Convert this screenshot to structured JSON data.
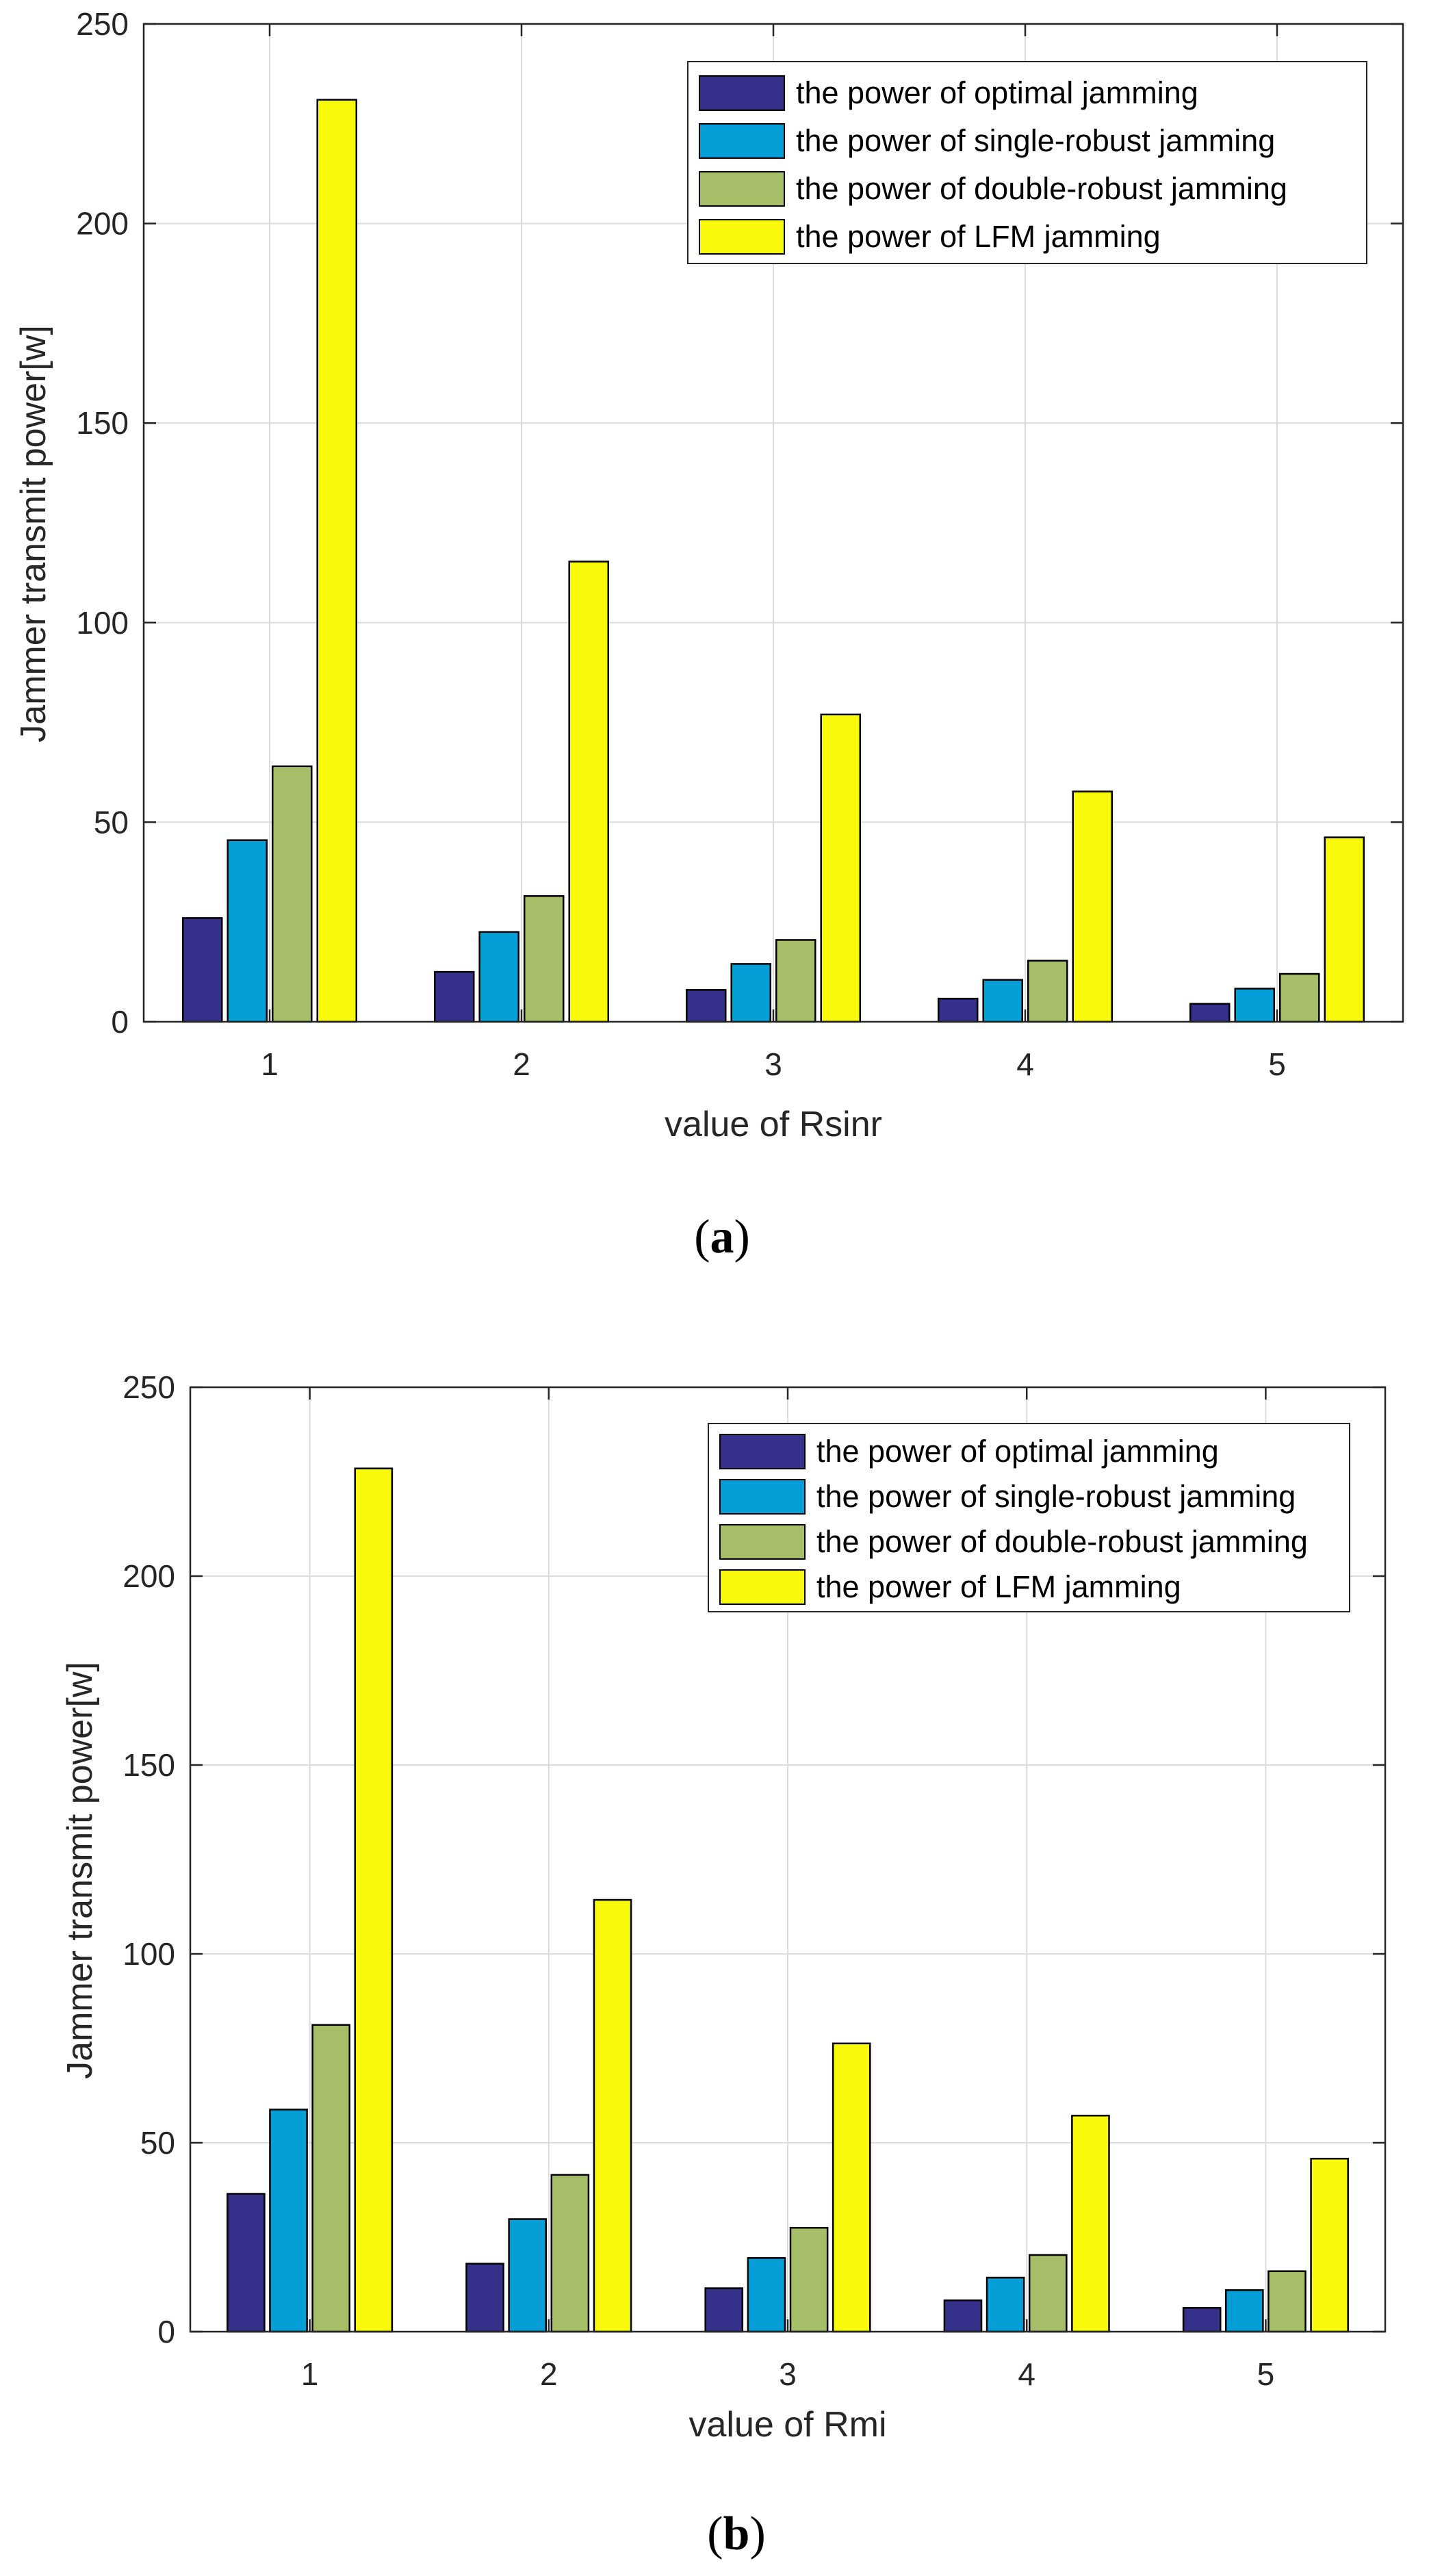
{
  "chart_data": [
    {
      "type": "bar",
      "caption": "(a)",
      "caption_letter": "a",
      "xlabel": "value of Rsinr",
      "ylabel": "Jammer transmit power[w]",
      "categories": [
        "1",
        "2",
        "3",
        "4",
        "5"
      ],
      "ylim": [
        0,
        250
      ],
      "yticks": [
        "0",
        "50",
        "100",
        "150",
        "200",
        "250"
      ],
      "grid": true,
      "legend_position": "top-right",
      "series": [
        {
          "name": "the power of optimal jamming",
          "color": "#35318a",
          "values": [
            26,
            12.5,
            8,
            5.8,
            4.5
          ]
        },
        {
          "name": "the power of single-robust jamming",
          "color": "#059ed6",
          "values": [
            45.5,
            22.5,
            14.5,
            10.5,
            8.3
          ]
        },
        {
          "name": "the power of double-robust jamming",
          "color": "#a6be68",
          "values": [
            64,
            31.5,
            20.5,
            15.3,
            12
          ]
        },
        {
          "name": "the power of LFM jamming",
          "color": "#f9f90c",
          "values": [
            231,
            115.3,
            77,
            57.7,
            46.2
          ]
        }
      ]
    },
    {
      "type": "bar",
      "caption": "(b)",
      "caption_letter": "b",
      "xlabel": "value of Rmi",
      "ylabel": "Jammer transmit power[w]",
      "categories": [
        "1",
        "2",
        "3",
        "4",
        "5"
      ],
      "ylim": [
        0,
        250
      ],
      "yticks": [
        "0",
        "50",
        "100",
        "150",
        "200",
        "250"
      ],
      "grid": true,
      "legend_position": "top-right",
      "series": [
        {
          "name": "the power of optimal jamming",
          "color": "#35318a",
          "values": [
            36.5,
            18,
            11.5,
            8.3,
            6.3
          ]
        },
        {
          "name": "the power of single-robust jamming",
          "color": "#059ed6",
          "values": [
            58.8,
            29.8,
            19.5,
            14.3,
            11
          ]
        },
        {
          "name": "the power of double-robust jamming",
          "color": "#a6be68",
          "values": [
            81.2,
            41.5,
            27.5,
            20.3,
            16
          ]
        },
        {
          "name": "the power of LFM jamming",
          "color": "#f9f90c",
          "values": [
            228.5,
            114.3,
            76.3,
            57.2,
            45.8
          ]
        }
      ]
    }
  ]
}
